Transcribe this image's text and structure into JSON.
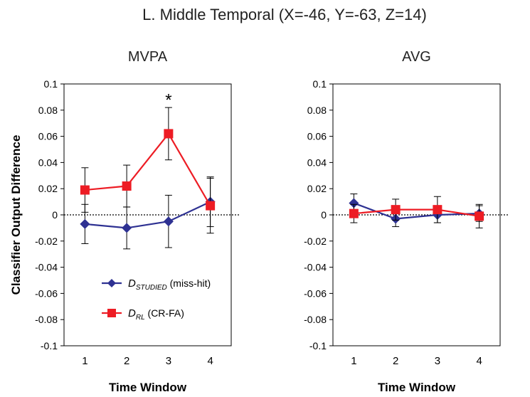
{
  "figure_title": "L. Middle Temporal (X=-46,  Y=-63,  Z=14)",
  "shared_ylabel": "Classifier Output Difference",
  "colors": {
    "studied": "#2e3192",
    "rl": "#ed1c24",
    "axis": "#000000"
  },
  "legend": {
    "studied": {
      "main": "D",
      "sub": "STUDIED",
      "rest": " (miss-hit)"
    },
    "rl": {
      "main": "D",
      "sub": "RL",
      "rest": " (CR-FA)"
    }
  },
  "chart_data": [
    {
      "type": "line",
      "title": "MVPA",
      "xlabel": "Time Window",
      "ylabel": "Classifier Output Difference",
      "categories": [
        "1",
        "2",
        "3",
        "4"
      ],
      "ylim": [
        -0.1,
        0.1
      ],
      "yticks": [
        "0.1",
        "0.08",
        "0.06",
        "0.04",
        "0.02",
        "0",
        "-0.02",
        "-0.04",
        "-0.06",
        "-0.08",
        "-0.1"
      ],
      "series": [
        {
          "name": "DSTUDIED (miss-hit)",
          "key": "studied",
          "values": [
            -0.007,
            -0.01,
            -0.005,
            0.01
          ],
          "errors": [
            0.015,
            0.016,
            0.02,
            0.019
          ]
        },
        {
          "name": "DRL (CR-FA)",
          "key": "rl",
          "values": [
            0.019,
            0.022,
            0.062,
            0.007
          ],
          "errors": [
            0.017,
            0.016,
            0.02,
            0.021
          ]
        }
      ],
      "annotations": [
        {
          "text": "*",
          "category": "3",
          "value": 0.09
        }
      ],
      "zero_line": true
    },
    {
      "type": "line",
      "title": "AVG",
      "xlabel": "Time Window",
      "ylabel": "",
      "categories": [
        "1",
        "2",
        "3",
        "4"
      ],
      "ylim": [
        -0.1,
        0.1
      ],
      "yticks": [
        "0.1",
        "0.08",
        "0.06",
        "0.04",
        "0.02",
        "0",
        "-0.02",
        "-0.04",
        "-0.06",
        "-0.08",
        "-0.1"
      ],
      "series": [
        {
          "name": "DSTUDIED (miss-hit)",
          "key": "studied",
          "values": [
            0.009,
            -0.003,
            0,
            0.001
          ],
          "errors": [
            0.007,
            0.006,
            0.006,
            0.006
          ]
        },
        {
          "name": "DRL (CR-FA)",
          "key": "rl",
          "values": [
            0.001,
            0.004,
            0.004,
            -0.001
          ],
          "errors": [
            0.007,
            0.008,
            0.01,
            0.009
          ]
        }
      ],
      "annotations": [],
      "zero_line": true
    }
  ]
}
